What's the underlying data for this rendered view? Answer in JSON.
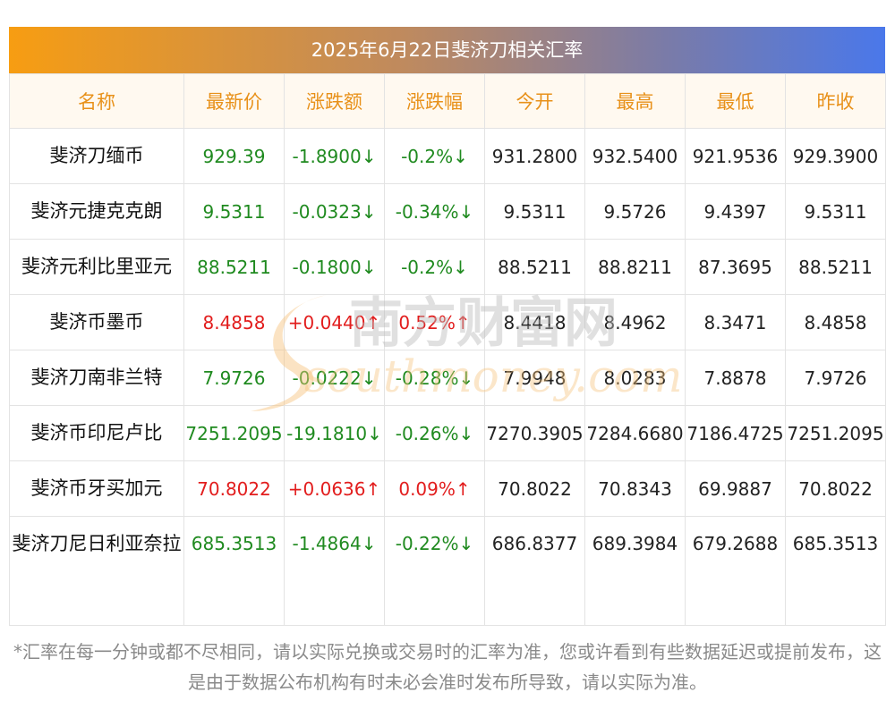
{
  "title": "2025年6月22日斐济刀相关汇率",
  "headers": [
    "名称",
    "最新价",
    "涨跌额",
    "涨跌幅",
    "今开",
    "最高",
    "最低",
    "昨收"
  ],
  "rows": [
    {
      "name": "斐济刀缅币",
      "latest": "929.39",
      "change": "-1.8900↓",
      "pct": "-0.2%↓",
      "open": "931.2800",
      "high": "932.5400",
      "low": "921.9536",
      "prev": "929.3900",
      "dir": "down"
    },
    {
      "name": "斐济元捷克克朗",
      "latest": "9.5311",
      "change": "-0.0323↓",
      "pct": "-0.34%↓",
      "open": "9.5311",
      "high": "9.5726",
      "low": "9.4397",
      "prev": "9.5311",
      "dir": "down"
    },
    {
      "name": "斐济元利比里亚元",
      "latest": "88.5211",
      "change": "-0.1800↓",
      "pct": "-0.2%↓",
      "open": "88.5211",
      "high": "88.8211",
      "low": "87.3695",
      "prev": "88.5211",
      "dir": "down"
    },
    {
      "name": "斐济币墨币",
      "latest": "8.4858",
      "change": "+0.0440↑",
      "pct": "0.52%↑",
      "open": "8.4418",
      "high": "8.4962",
      "low": "8.3471",
      "prev": "8.4858",
      "dir": "up"
    },
    {
      "name": "斐济刀南非兰特",
      "latest": "7.9726",
      "change": "-0.0222↓",
      "pct": "-0.28%↓",
      "open": "7.9948",
      "high": "8.0283",
      "low": "7.8878",
      "prev": "7.9726",
      "dir": "down"
    },
    {
      "name": "斐济币印尼卢比",
      "latest": "7251.2095",
      "change": "-19.1810↓",
      "pct": "-0.26%↓",
      "open": "7270.3905",
      "high": "7284.6680",
      "low": "7186.4725",
      "prev": "7251.2095",
      "dir": "down"
    },
    {
      "name": "斐济币牙买加元",
      "latest": "70.8022",
      "change": "+0.0636↑",
      "pct": "0.09%↑",
      "open": "70.8022",
      "high": "70.8343",
      "low": "69.9887",
      "prev": "70.8022",
      "dir": "up"
    },
    {
      "name": "斐济刀尼日利亚奈拉",
      "latest": "685.3513",
      "change": "-1.4864↓",
      "pct": "-0.22%↓",
      "open": "686.8377",
      "high": "689.3984",
      "low": "679.2688",
      "prev": "685.3513",
      "dir": "down"
    }
  ],
  "watermark": {
    "cn": "南方财富网",
    "en": "southmoney.com"
  },
  "colors": {
    "up": "#e21d1d",
    "down": "#1f8a1f",
    "header_text": "#e8911a",
    "gradient_start": "#f79d12",
    "gradient_end": "#4a78ea"
  },
  "note": "*汇率在每一分钟或都不尽相同，请以实际兑换或交易时的汇率为准，您或许看到有些数据延迟或提前发布，这是由于数据公布机构有时未必会准时发布所导致，请以实际为准。"
}
